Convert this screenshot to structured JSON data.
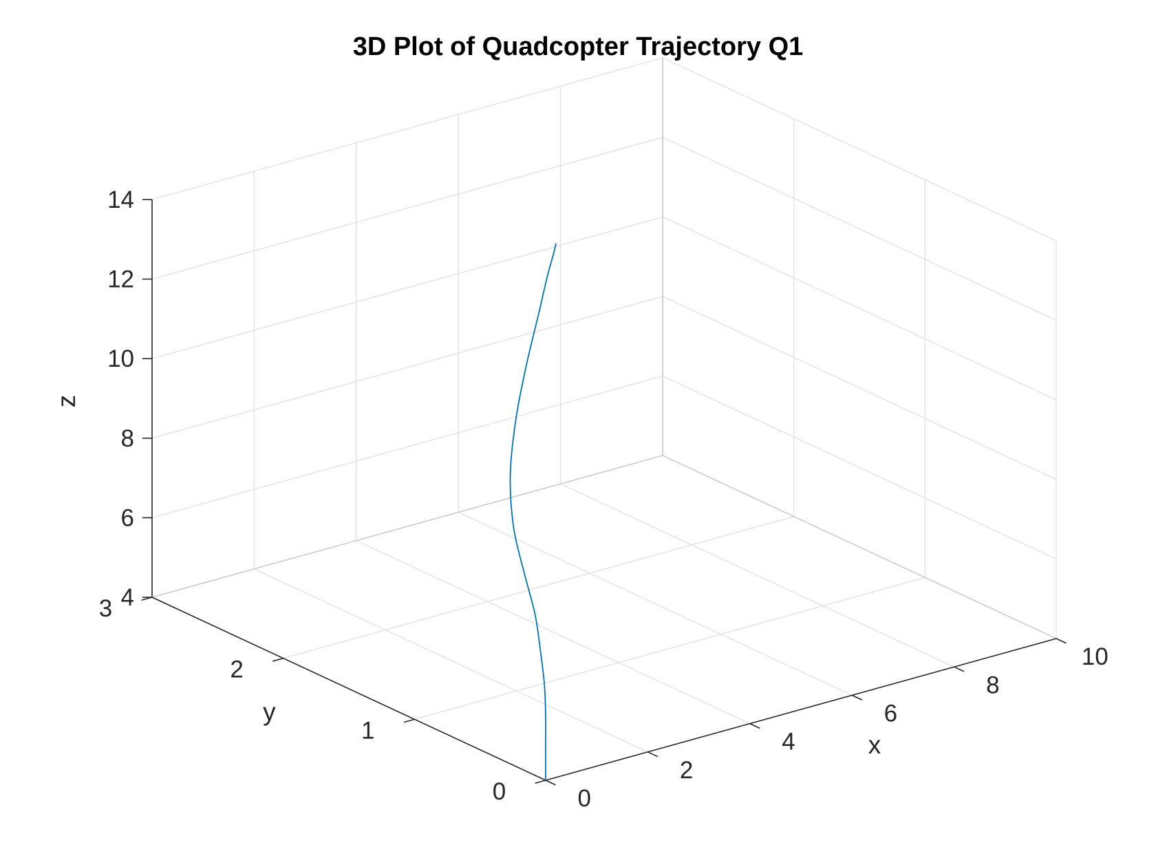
{
  "chart_data": {
    "type": "line",
    "projection": "3d",
    "title": "3D Plot of Quadcopter Trajectory Q1",
    "xlabel": "x",
    "ylabel": "y",
    "zlabel": "z",
    "xlim": [
      0,
      10
    ],
    "ylim": [
      0,
      3
    ],
    "zlim": [
      4,
      14
    ],
    "xticks": [
      "0",
      "2",
      "4",
      "6",
      "8",
      "10"
    ],
    "yticks": [
      "0",
      "1",
      "2",
      "3"
    ],
    "zticks": [
      "4",
      "6",
      "8",
      "10",
      "12",
      "14"
    ],
    "grid": true,
    "series": [
      {
        "color": "#0072bd",
        "x": [
          0,
          0,
          0,
          0,
          0,
          0.05,
          0.15,
          0.4,
          0.9,
          1.6,
          2.35,
          3.0,
          3.45,
          3.7,
          3.8
        ],
        "y": [
          0,
          0,
          0,
          0.01,
          0.04,
          0.1,
          0.22,
          0.4,
          0.62,
          0.85,
          1.06,
          1.22,
          1.33,
          1.38,
          1.4
        ],
        "z": [
          4,
          4.8,
          5.6,
          6.4,
          7.2,
          8.0,
          8.8,
          9.6,
          10.4,
          11.2,
          12.0,
          12.8,
          13.4,
          13.8,
          14.0
        ]
      }
    ]
  }
}
